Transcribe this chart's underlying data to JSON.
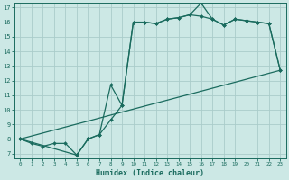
{
  "title": "",
  "xlabel": "Humidex (Indice chaleur)",
  "bg_color": "#cce8e5",
  "line_color": "#1a6b5e",
  "grid_color": "#aaccca",
  "xlim": [
    -0.5,
    23.5
  ],
  "ylim": [
    6.7,
    17.3
  ],
  "xticks": [
    0,
    1,
    2,
    3,
    4,
    5,
    6,
    7,
    8,
    9,
    10,
    11,
    12,
    13,
    14,
    15,
    16,
    17,
    18,
    19,
    20,
    21,
    22,
    23
  ],
  "yticks": [
    7,
    8,
    9,
    10,
    11,
    12,
    13,
    14,
    15,
    16,
    17
  ],
  "line1_x": [
    0,
    1,
    2,
    3,
    4,
    5,
    6,
    7,
    8,
    9,
    10,
    11,
    12,
    13,
    14,
    15,
    16,
    17,
    18,
    19,
    20,
    21,
    22,
    23
  ],
  "line1_y": [
    8,
    7.7,
    7.5,
    7.7,
    7.7,
    6.9,
    8.0,
    8.3,
    9.3,
    10.3,
    16.0,
    16.0,
    15.9,
    16.2,
    16.3,
    16.5,
    16.4,
    16.2,
    15.8,
    16.2,
    16.1,
    16.0,
    15.9,
    12.7
  ],
  "line2_x": [
    0,
    5,
    6,
    7,
    8,
    9,
    10,
    11,
    12,
    13,
    14,
    15,
    16,
    17,
    18,
    19,
    20,
    21,
    22,
    23
  ],
  "line2_y": [
    8,
    6.9,
    8.0,
    8.3,
    11.7,
    10.3,
    16.0,
    16.0,
    15.9,
    16.2,
    16.3,
    16.5,
    17.3,
    16.2,
    15.8,
    16.2,
    16.1,
    16.0,
    15.9,
    12.7
  ],
  "line3_x": [
    0,
    23
  ],
  "line3_y": [
    8,
    12.7
  ]
}
